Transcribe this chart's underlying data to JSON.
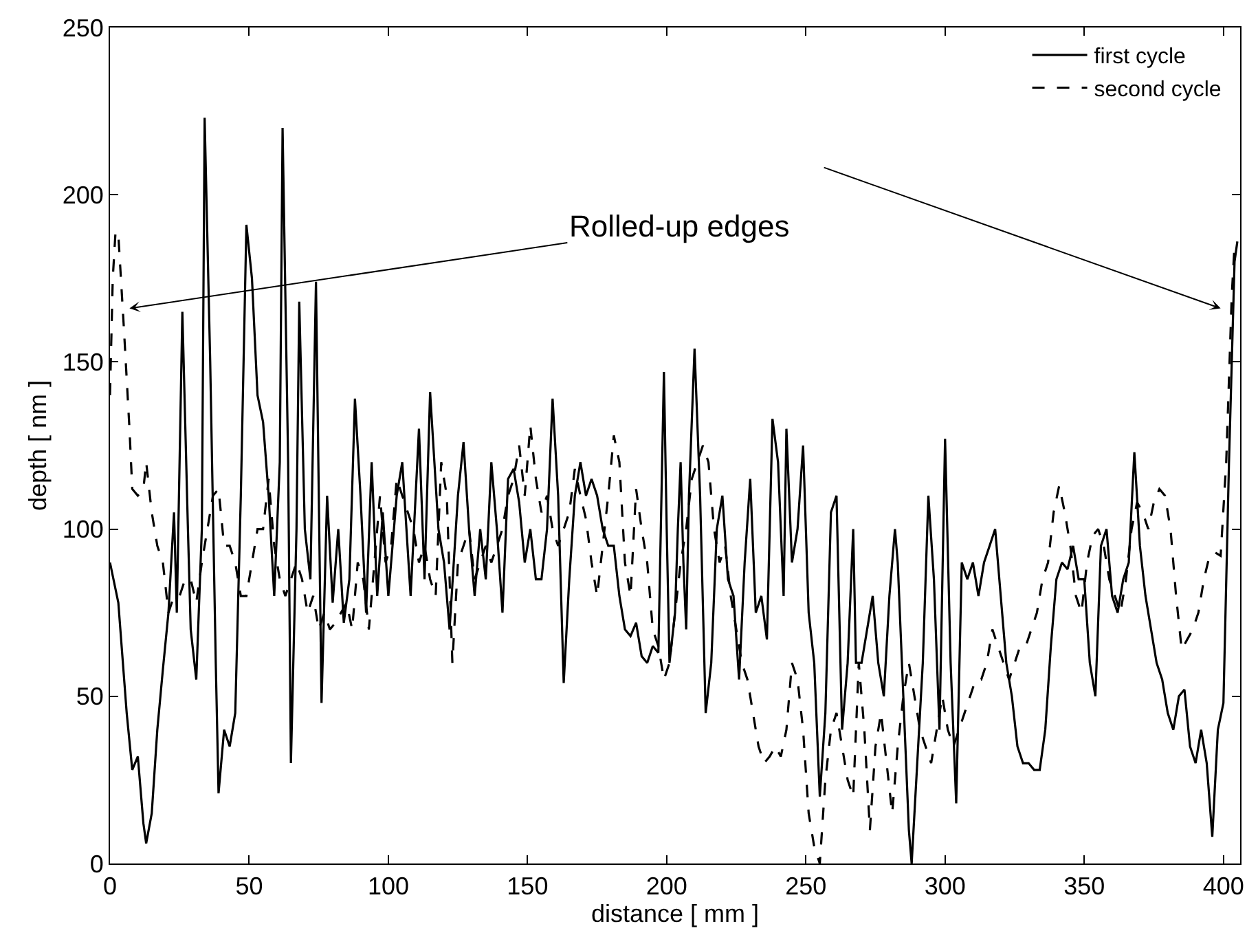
{
  "chart_data": {
    "type": "line",
    "xlabel": "distance [ mm ]",
    "ylabel": "depth [ nm ]",
    "xlim": [
      0,
      406
    ],
    "xticks": [
      0,
      50,
      100,
      150,
      200,
      250,
      300,
      350,
      400
    ],
    "ylim": [
      0,
      250
    ],
    "yticks": [
      0,
      50,
      100,
      150,
      200,
      250
    ],
    "grid": false,
    "legend": "top right",
    "marker": "none",
    "annotations": [
      {
        "text": "Rolled-up edges",
        "x": 7,
        "y": 166
      }
    ],
    "series": [
      {
        "name": "first cycle",
        "color": "#000000",
        "line_style": "solid",
        "x": [
          0,
          3,
          6,
          8,
          10,
          12,
          13,
          15,
          17,
          19,
          21,
          23,
          24,
          26,
          28,
          29,
          31,
          33,
          34,
          36,
          38,
          39,
          41,
          43,
          45,
          47,
          49,
          51,
          53,
          55,
          57,
          59,
          61,
          62,
          64,
          65,
          67,
          68,
          70,
          72,
          74,
          76,
          78,
          80,
          82,
          84,
          86,
          88,
          90,
          92,
          94,
          96,
          98,
          100,
          103,
          105,
          108,
          111,
          113,
          115,
          118,
          120,
          122,
          125,
          127,
          129,
          131,
          133,
          135,
          137,
          139,
          141,
          143,
          145,
          147,
          149,
          151,
          153,
          155,
          157,
          159,
          161,
          163,
          165,
          167,
          169,
          171,
          173,
          175,
          177,
          179,
          181,
          183,
          185,
          187,
          189,
          191,
          193,
          195,
          197,
          199,
          200,
          201,
          203,
          204,
          205,
          206,
          207,
          208,
          210,
          212,
          214,
          216,
          218,
          220,
          222,
          224,
          226,
          228,
          230,
          232,
          234,
          236,
          238,
          240,
          242,
          243,
          245,
          247,
          249,
          251,
          253,
          255,
          257,
          259,
          261,
          263,
          265,
          267,
          268,
          270,
          272,
          274,
          276,
          278,
          280,
          282,
          283,
          285,
          287,
          288,
          290,
          292,
          294,
          296,
          298,
          300,
          302,
          304,
          306,
          308,
          310,
          312,
          314,
          316,
          318,
          320,
          322,
          324,
          326,
          328,
          330,
          332,
          334,
          336,
          338,
          340,
          342,
          344,
          346,
          348,
          350,
          352,
          354,
          356,
          358,
          360,
          362,
          364,
          366,
          368,
          370,
          372,
          374,
          376,
          378,
          380,
          382,
          384,
          386,
          388,
          390,
          392,
          394,
          396,
          398,
          400,
          402,
          404,
          405
        ],
        "values": [
          90,
          78,
          45,
          28,
          32,
          12,
          6,
          15,
          40,
          58,
          75,
          105,
          75,
          165,
          100,
          70,
          55,
          100,
          223,
          150,
          60,
          21,
          40,
          35,
          45,
          110,
          191,
          175,
          140,
          132,
          110,
          80,
          120,
          220,
          120,
          30,
          100,
          168,
          100,
          85,
          174,
          48,
          110,
          78,
          100,
          72,
          85,
          139,
          110,
          75,
          120,
          80,
          105,
          80,
          110,
          120,
          80,
          130,
          85,
          141,
          100,
          90,
          70,
          110,
          126,
          100,
          80,
          100,
          85,
          120,
          100,
          75,
          115,
          118,
          108,
          90,
          100,
          85,
          85,
          100,
          139,
          110,
          54,
          85,
          110,
          120,
          110,
          115,
          110,
          100,
          95,
          95,
          80,
          70,
          68,
          72,
          62,
          60,
          65,
          63,
          147,
          100,
          60,
          75,
          100,
          120,
          90,
          70,
          110,
          154,
          110,
          45,
          60,
          100,
          110,
          85,
          80,
          55,
          90,
          115,
          75,
          80,
          67,
          133,
          120,
          80,
          130,
          90,
          100,
          125,
          75,
          60,
          20,
          45,
          105,
          110,
          40,
          60,
          100,
          60,
          60,
          70,
          80,
          60,
          50,
          80,
          100,
          90,
          50,
          10,
          0,
          30,
          60,
          110,
          85,
          40,
          127,
          60,
          18,
          90,
          85,
          90,
          80,
          90,
          95,
          100,
          80,
          60,
          50,
          35,
          30,
          30,
          28,
          28,
          40,
          65,
          85,
          90,
          88,
          95,
          85,
          85,
          60,
          50,
          95,
          100,
          80,
          75,
          85,
          90,
          123,
          95,
          80,
          70,
          60,
          55,
          45,
          40,
          50,
          52,
          35,
          30,
          40,
          30,
          8,
          40,
          48,
          120,
          180,
          186
        ]
      },
      {
        "name": "second cycle",
        "color": "#000000",
        "line_style": "dashed",
        "x": [
          0,
          1,
          2,
          3,
          5,
          7,
          8,
          10,
          12,
          13,
          15,
          17,
          19,
          21,
          23,
          25,
          27,
          29,
          31,
          33,
          35,
          37,
          39,
          41,
          43,
          45,
          47,
          49,
          51,
          53,
          55,
          57,
          59,
          61,
          63,
          65,
          67,
          69,
          71,
          73,
          75,
          77,
          79,
          81,
          83,
          85,
          87,
          89,
          91,
          93,
          95,
          97,
          99,
          101,
          103,
          105,
          107,
          109,
          111,
          113,
          115,
          117,
          119,
          121,
          123,
          125,
          127,
          129,
          131,
          133,
          135,
          137,
          139,
          141,
          143,
          145,
          147,
          149,
          151,
          153,
          155,
          157,
          159,
          161,
          163,
          165,
          167,
          169,
          171,
          173,
          175,
          177,
          179,
          181,
          183,
          185,
          187,
          189,
          191,
          193,
          195,
          197,
          199,
          201,
          203,
          205,
          207,
          209,
          211,
          213,
          215,
          217,
          219,
          221,
          223,
          225,
          227,
          229,
          231,
          233,
          235,
          237,
          239,
          241,
          243,
          245,
          247,
          249,
          251,
          253,
          255,
          257,
          259,
          261,
          263,
          265,
          267,
          269,
          271,
          273,
          275,
          277,
          279,
          281,
          283,
          285,
          287,
          289,
          291,
          293,
          295,
          297,
          299,
          301,
          303,
          305,
          307,
          309,
          311,
          313,
          315,
          317,
          319,
          321,
          323,
          325,
          327,
          329,
          331,
          333,
          335,
          337,
          339,
          341,
          343,
          345,
          347,
          349,
          351,
          353,
          355,
          357,
          359,
          361,
          363,
          365,
          367,
          369,
          371,
          373,
          375,
          377,
          379,
          381,
          383,
          385,
          387,
          389,
          391,
          393,
          395,
          397,
          399,
          401,
          403,
          404,
          405
        ],
        "values": [
          140,
          175,
          189,
          188,
          160,
          130,
          112,
          110,
          112,
          120,
          105,
          95,
          90,
          75,
          80,
          80,
          85,
          85,
          78,
          90,
          100,
          110,
          112,
          95,
          95,
          90,
          80,
          80,
          90,
          100,
          100,
          115,
          95,
          85,
          80,
          85,
          90,
          85,
          75,
          80,
          70,
          75,
          70,
          72,
          75,
          78,
          70,
          90,
          85,
          70,
          90,
          110,
          90,
          95,
          115,
          110,
          105,
          100,
          90,
          95,
          85,
          80,
          120,
          110,
          60,
          90,
          95,
          100,
          85,
          90,
          95,
          90,
          95,
          100,
          110,
          115,
          125,
          110,
          131,
          115,
          105,
          110,
          100,
          95,
          100,
          105,
          118,
          110,
          103,
          90,
          80,
          95,
          110,
          128,
          120,
          90,
          80,
          112,
          100,
          90,
          70,
          65,
          55,
          60,
          75,
          90,
          100,
          115,
          120,
          125,
          120,
          100,
          90,
          95,
          80,
          70,
          60,
          55,
          45,
          35,
          30,
          32,
          35,
          32,
          40,
          60,
          55,
          40,
          15,
          5,
          0,
          25,
          40,
          45,
          35,
          25,
          20,
          60,
          40,
          10,
          35,
          45,
          30,
          15,
          35,
          50,
          60,
          50,
          40,
          35,
          30,
          40,
          50,
          40,
          35,
          40,
          45,
          50,
          55,
          55,
          60,
          70,
          65,
          60,
          55,
          60,
          65,
          65,
          70,
          75,
          85,
          90,
          105,
          113,
          105,
          95,
          80,
          75,
          90,
          98,
          100,
          95,
          85,
          80,
          75,
          85,
          100,
          108,
          105,
          100,
          108,
          112,
          110,
          100,
          80,
          64,
          67,
          70,
          75,
          85,
          92,
          93,
          92,
          120,
          170,
          185,
          184
        ]
      }
    ]
  }
}
